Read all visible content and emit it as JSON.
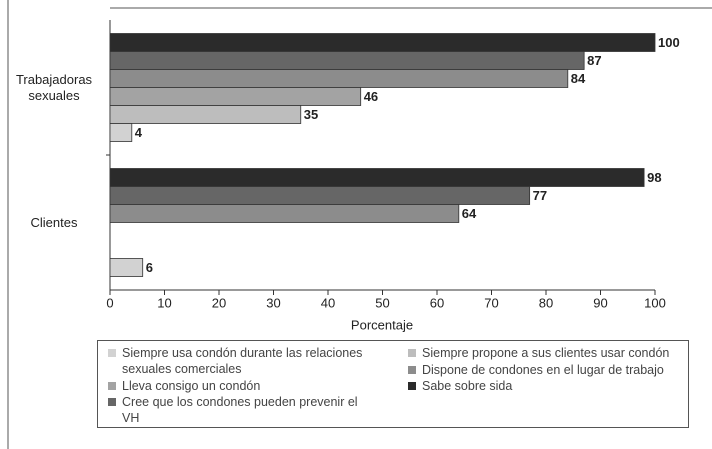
{
  "chart_data": {
    "type": "bar",
    "orientation": "horizontal",
    "categories": [
      "Trabajadoras sexuales",
      "Clientes"
    ],
    "series": [
      {
        "name": "Sabe sobre sida",
        "color": "#2b2b2b",
        "values": [
          100,
          98
        ]
      },
      {
        "name": "Cree que los condones pueden prevenir el VH",
        "color": "#666666",
        "values": [
          87,
          77
        ]
      },
      {
        "name": "Dispone de condones en el lugar de trabajo",
        "color": "#8c8c8c",
        "values": [
          84,
          64
        ]
      },
      {
        "name": "Lleva consigo un condón",
        "color": "#a3a3a3",
        "values": [
          46,
          null
        ]
      },
      {
        "name": "Siempre propone a sus clientes usar condón",
        "color": "#bdbdbd",
        "values": [
          35,
          null
        ]
      },
      {
        "name": "Siempre usa condón durante las relaciones sexuales comerciales",
        "color": "#d2d2d2",
        "values": [
          4,
          6
        ]
      }
    ],
    "xlabel": "Porcentaje",
    "xlim": [
      0,
      100
    ],
    "xticks": [
      0,
      10,
      20,
      30,
      40,
      50,
      60,
      70,
      80,
      90,
      100
    ]
  }
}
